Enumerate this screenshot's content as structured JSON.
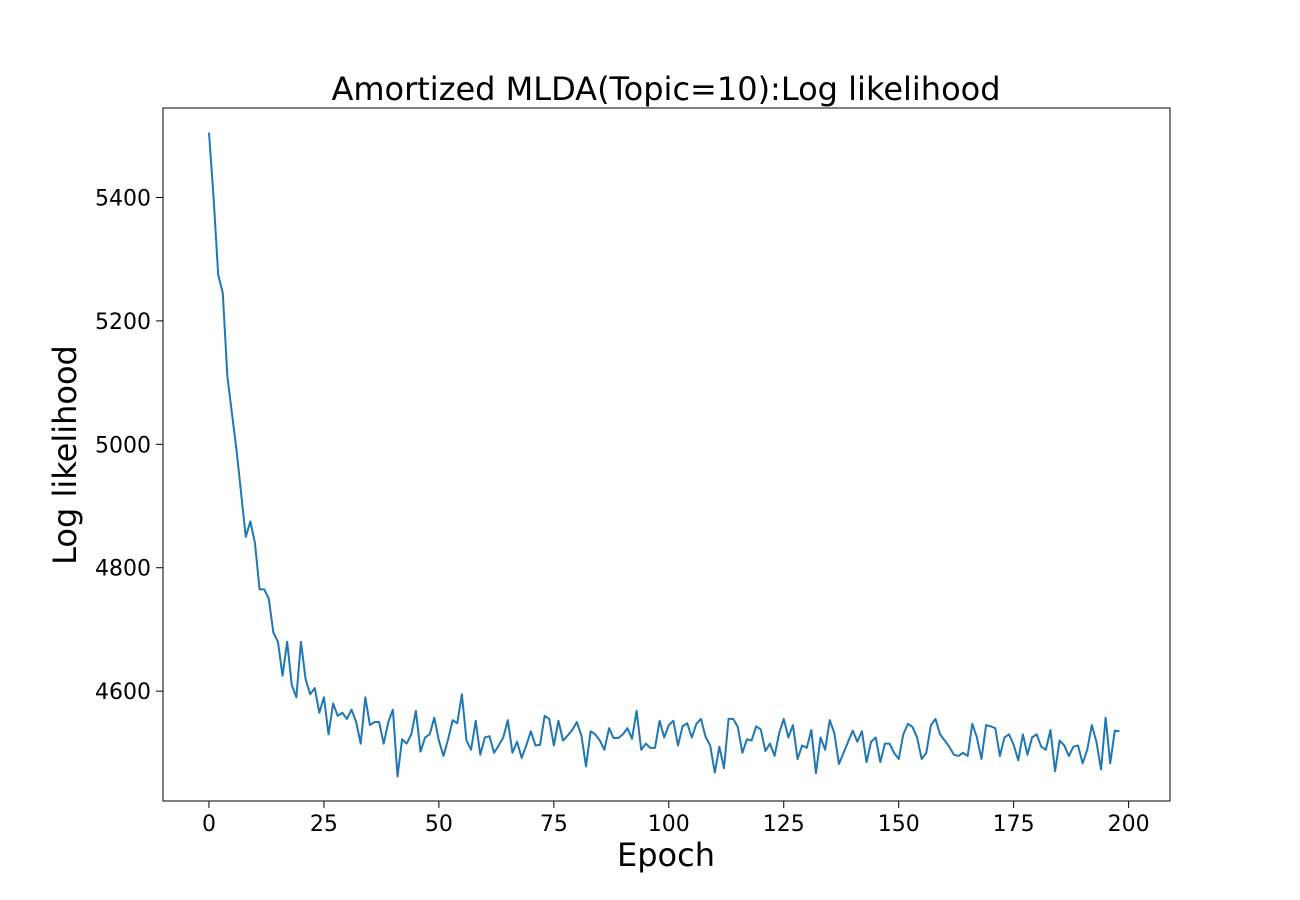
{
  "chart_data": {
    "type": "line",
    "title": "Amortized MLDA(Topic=10):Log likelihood",
    "xlabel": "Epoch",
    "ylabel": "Log likelihood",
    "xlim": [
      -10,
      209
    ],
    "ylim": [
      4422,
      5545
    ],
    "xticks": [
      0,
      25,
      50,
      75,
      100,
      125,
      150,
      175,
      200
    ],
    "yticks": [
      4600,
      4800,
      5000,
      5200,
      5400
    ],
    "grid": false,
    "colors": {
      "series": "#1f77b4",
      "axes": "#000000",
      "background": "#ffffff"
    },
    "series": [
      {
        "x_start": 0,
        "x_step": 1,
        "values": [
          5505,
          5400,
          5275,
          5245,
          5110,
          5050,
          4990,
          4920,
          4850,
          4875,
          4840,
          4765,
          4765,
          4750,
          4695,
          4680,
          4625,
          4680,
          4610,
          4590,
          4680,
          4620,
          4595,
          4605,
          4565,
          4590,
          4530,
          4580,
          4560,
          4565,
          4555,
          4570,
          4550,
          4515,
          4590,
          4545,
          4550,
          4550,
          4515,
          4550,
          4570,
          4462,
          4522,
          4515,
          4530,
          4568,
          4502,
          4525,
          4530,
          4557,
          4520,
          4495,
          4522,
          4553,
          4548,
          4595,
          4520,
          4505,
          4552,
          4497,
          4525,
          4527,
          4500,
          4512,
          4525,
          4553,
          4500,
          4518,
          4492,
          4512,
          4535,
          4512,
          4513,
          4560,
          4555,
          4512,
          4552,
          4520,
          4528,
          4537,
          4550,
          4528,
          4478,
          4535,
          4530,
          4520,
          4505,
          4540,
          4524,
          4524,
          4530,
          4540,
          4523,
          4568,
          4505,
          4515,
          4508,
          4508,
          4552,
          4525,
          4545,
          4552,
          4512,
          4543,
          4548,
          4525,
          4547,
          4555,
          4526,
          4512,
          4468,
          4510,
          4475,
          4555,
          4555,
          4542,
          4500,
          4522,
          4520,
          4543,
          4538,
          4503,
          4515,
          4495,
          4532,
          4555,
          4525,
          4545,
          4490,
          4512,
          4508,
          4537,
          4467,
          4525,
          4505,
          4553,
          4532,
          4482,
          4500,
          4518,
          4536,
          4518,
          4535,
          4485,
          4518,
          4525,
          4485,
          4515,
          4515,
          4500,
          4490,
          4530,
          4547,
          4542,
          4525,
          4490,
          4500,
          4545,
          4555,
          4530,
          4520,
          4510,
          4497,
          4495,
          4500,
          4495,
          4547,
          4525,
          4490,
          4545,
          4543,
          4540,
          4495,
          4525,
          4530,
          4513,
          4488,
          4530,
          4497,
          4525,
          4530,
          4510,
          4505,
          4537,
          4470,
          4520,
          4512,
          4495,
          4510,
          4512,
          4483,
          4505,
          4545,
          4518,
          4473,
          4557,
          4483,
          4536,
          4535
        ]
      }
    ]
  }
}
